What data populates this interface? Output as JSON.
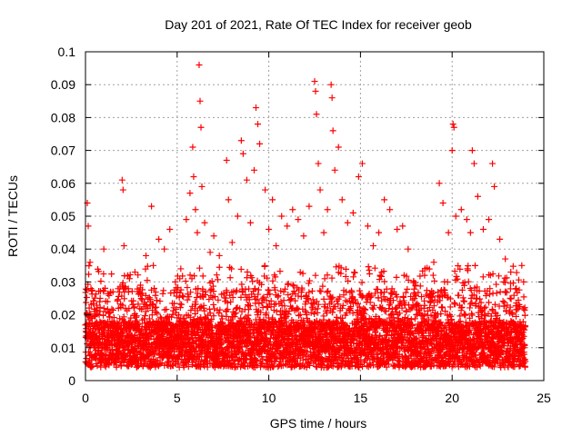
{
  "chart_data": {
    "type": "scatter",
    "title": "Day 201 of 2021, Rate Of TEC Index for receiver geob",
    "xlabel": "GPS time / hours",
    "ylabel": "ROTI / TECUs",
    "xlim": [
      0,
      25
    ],
    "ylim": [
      0,
      0.1
    ],
    "x_ticks": [
      "0",
      "5",
      "10",
      "15",
      "20",
      "25"
    ],
    "y_ticks": [
      "0",
      "0.01",
      "0.02",
      "0.03",
      "0.04",
      "0.05",
      "0.06",
      "0.07",
      "0.08",
      "0.09",
      "0.1"
    ],
    "grid": true,
    "marker": "plus",
    "color": "#ff0000",
    "series": [
      {
        "points": [
          [
            0.1,
            0.054
          ],
          [
            0.15,
            0.047
          ],
          [
            0.25,
            0.036
          ],
          [
            0.3,
            0.028
          ],
          [
            0.5,
            0.021
          ],
          [
            0.8,
            0.025
          ],
          [
            1.0,
            0.04
          ],
          [
            1.2,
            0.024
          ],
          [
            1.5,
            0.027
          ],
          [
            1.8,
            0.022
          ],
          [
            2.0,
            0.061
          ],
          [
            2.05,
            0.058
          ],
          [
            2.1,
            0.041
          ],
          [
            2.4,
            0.031
          ],
          [
            2.7,
            0.033
          ],
          [
            3.0,
            0.029
          ],
          [
            3.3,
            0.038
          ],
          [
            3.6,
            0.053
          ],
          [
            3.7,
            0.035
          ],
          [
            4.0,
            0.043
          ],
          [
            4.3,
            0.04
          ],
          [
            4.6,
            0.046
          ],
          [
            4.9,
            0.03
          ],
          [
            5.2,
            0.034
          ],
          [
            5.5,
            0.049
          ],
          [
            5.7,
            0.057
          ],
          [
            5.85,
            0.071
          ],
          [
            5.9,
            0.062
          ],
          [
            6.0,
            0.052
          ],
          [
            6.1,
            0.045
          ],
          [
            6.2,
            0.096
          ],
          [
            6.25,
            0.085
          ],
          [
            6.3,
            0.077
          ],
          [
            6.35,
            0.059
          ],
          [
            6.5,
            0.048
          ],
          [
            6.8,
            0.039
          ],
          [
            7.0,
            0.044
          ],
          [
            7.3,
            0.038
          ],
          [
            7.7,
            0.067
          ],
          [
            7.8,
            0.055
          ],
          [
            8.0,
            0.042
          ],
          [
            8.3,
            0.05
          ],
          [
            8.5,
            0.073
          ],
          [
            8.6,
            0.069
          ],
          [
            8.8,
            0.061
          ],
          [
            9.0,
            0.048
          ],
          [
            9.2,
            0.064
          ],
          [
            9.3,
            0.083
          ],
          [
            9.4,
            0.078
          ],
          [
            9.5,
            0.072
          ],
          [
            9.8,
            0.058
          ],
          [
            10.0,
            0.046
          ],
          [
            10.2,
            0.055
          ],
          [
            10.4,
            0.041
          ],
          [
            10.7,
            0.05
          ],
          [
            11.0,
            0.047
          ],
          [
            11.3,
            0.052
          ],
          [
            11.6,
            0.049
          ],
          [
            11.9,
            0.044
          ],
          [
            12.2,
            0.053
          ],
          [
            12.5,
            0.091
          ],
          [
            12.55,
            0.088
          ],
          [
            12.6,
            0.081
          ],
          [
            12.7,
            0.066
          ],
          [
            12.8,
            0.058
          ],
          [
            13.0,
            0.045
          ],
          [
            13.2,
            0.052
          ],
          [
            13.4,
            0.09
          ],
          [
            13.45,
            0.086
          ],
          [
            13.5,
            0.076
          ],
          [
            13.6,
            0.064
          ],
          [
            13.8,
            0.071
          ],
          [
            14.0,
            0.055
          ],
          [
            14.3,
            0.048
          ],
          [
            14.6,
            0.051
          ],
          [
            14.9,
            0.062
          ],
          [
            15.1,
            0.066
          ],
          [
            15.4,
            0.047
          ],
          [
            15.7,
            0.041
          ],
          [
            16.0,
            0.045
          ],
          [
            16.3,
            0.055
          ],
          [
            16.6,
            0.052
          ],
          [
            17.0,
            0.046
          ],
          [
            17.3,
            0.047
          ],
          [
            17.6,
            0.04
          ],
          [
            18.0,
            0.029
          ],
          [
            18.5,
            0.032
          ],
          [
            19.0,
            0.036
          ],
          [
            19.3,
            0.06
          ],
          [
            19.5,
            0.054
          ],
          [
            19.8,
            0.045
          ],
          [
            20.0,
            0.07
          ],
          [
            20.05,
            0.078
          ],
          [
            20.1,
            0.077
          ],
          [
            20.2,
            0.05
          ],
          [
            20.5,
            0.052
          ],
          [
            20.8,
            0.049
          ],
          [
            21.0,
            0.045
          ],
          [
            21.1,
            0.07
          ],
          [
            21.2,
            0.066
          ],
          [
            21.4,
            0.056
          ],
          [
            21.7,
            0.046
          ],
          [
            22.0,
            0.049
          ],
          [
            22.2,
            0.066
          ],
          [
            22.3,
            0.059
          ],
          [
            22.6,
            0.043
          ],
          [
            22.9,
            0.037
          ],
          [
            23.2,
            0.033
          ],
          [
            23.5,
            0.028
          ],
          [
            23.8,
            0.035
          ],
          [
            23.9,
            0.03
          ]
        ]
      }
    ]
  }
}
